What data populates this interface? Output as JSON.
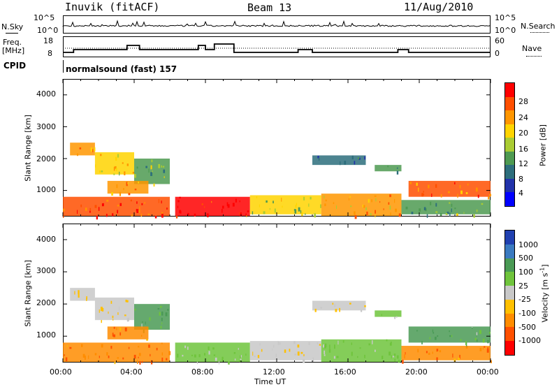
{
  "header": {
    "station": "Inuvik (fitACF)",
    "beam": "Beam 13",
    "date": "11/Aug/2010"
  },
  "top_panel": {
    "left_label": "N.Sky",
    "left_ticks": [
      "10^5",
      "10^0"
    ],
    "right_label": "N.Search",
    "right_ticks": [
      "10^5",
      "10^0"
    ]
  },
  "freq_panel": {
    "left_label_1": "Freq.",
    "left_label_2": "[MHz]",
    "left_ticks": [
      "18",
      "8"
    ],
    "right_label": "Nave",
    "right_ticks": [
      "60",
      "0"
    ]
  },
  "cpid": {
    "label": "CPID",
    "value": "normalsound (fast) 157"
  },
  "axes": {
    "y_label": "Slant Range [km]",
    "y_ticks": [
      "4000",
      "3000",
      "2000",
      "1000"
    ],
    "x_label": "Time UT",
    "x_ticks": [
      "00:00",
      "04:00",
      "08:00",
      "12:00",
      "16:00",
      "20:00",
      "00:00"
    ]
  },
  "power_colorbar": {
    "label": "Power [dB]",
    "ticks": [
      "28",
      "24",
      "20",
      "16",
      "12",
      "8",
      "4"
    ],
    "colors": [
      "#ff0000",
      "#ff4f00",
      "#ff9600",
      "#ffd400",
      "#aacc33",
      "#4e9a51",
      "#2d6e7c",
      "#2233aa",
      "#0000ff"
    ]
  },
  "velocity_colorbar": {
    "label": "Velocity [m s",
    "label_sup": "-1",
    "label_end": "]",
    "ticks": [
      "1000",
      "500",
      "100",
      "25",
      "-25",
      "-100",
      "-500",
      "-1000"
    ],
    "colors": [
      "#2040b0",
      "#3a7ac0",
      "#4a9a55",
      "#6fc43c",
      "#c8c8c8",
      "#ffc000",
      "#ff8c00",
      "#ff5000",
      "#ff0000"
    ]
  },
  "chart_data": {
    "type": "heatmap",
    "title": "Inuvik (fitACF)  Beam 13  11/Aug/2010",
    "xlabel": "Time UT",
    "ylabel": "Slant Range [km]",
    "xlim": [
      0,
      24
    ],
    "ylim": [
      180,
      4500
    ],
    "x_ticks_hours": [
      0,
      4,
      8,
      12,
      16,
      20,
      24
    ],
    "y_ticks_km": [
      1000,
      2000,
      3000,
      4000
    ],
    "power_clim_db": [
      0,
      32
    ],
    "velocity_levels_ms": [
      -1000,
      -500,
      -100,
      -25,
      25,
      100,
      500,
      1000
    ],
    "frequency_steps": [
      {
        "t0": 0,
        "t1": 0.6,
        "mhz": 9
      },
      {
        "t0": 0.6,
        "t1": 1.8,
        "mhz": 11
      },
      {
        "t0": 1.8,
        "t1": 3.6,
        "mhz": 11
      },
      {
        "t0": 3.6,
        "t1": 4.3,
        "mhz": 14
      },
      {
        "t0": 4.3,
        "t1": 7.6,
        "mhz": 11
      },
      {
        "t0": 7.6,
        "t1": 8.0,
        "mhz": 14
      },
      {
        "t0": 8.0,
        "t1": 8.5,
        "mhz": 11
      },
      {
        "t0": 8.5,
        "t1": 9.6,
        "mhz": 15
      },
      {
        "t0": 9.6,
        "t1": 13.2,
        "mhz": 9
      },
      {
        "t0": 13.2,
        "t1": 14.0,
        "mhz": 11
      },
      {
        "t0": 14.0,
        "t1": 18.8,
        "mhz": 9
      },
      {
        "t0": 18.8,
        "t1": 19.4,
        "mhz": 11
      },
      {
        "t0": 19.4,
        "t1": 24,
        "mhz": 9
      }
    ],
    "echo_regions": [
      {
        "t0": 0.0,
        "t1": 6.0,
        "r0": 200,
        "r1": 800,
        "power_db": 28,
        "velocity": -500
      },
      {
        "t0": 6.3,
        "t1": 10.5,
        "r0": 200,
        "r1": 800,
        "power_db": 30,
        "velocity": 25
      },
      {
        "t0": 10.5,
        "t1": 14.5,
        "r0": 250,
        "r1": 850,
        "power_db": 18,
        "velocity": -25
      },
      {
        "t0": 14.5,
        "t1": 19.0,
        "r0": 200,
        "r1": 900,
        "power_db": 22,
        "velocity": 25
      },
      {
        "t0": 19.0,
        "t1": 24.0,
        "r0": 250,
        "r1": 700,
        "power_db": 14,
        "velocity": -500
      },
      {
        "t0": 19.4,
        "t1": 24.0,
        "r0": 800,
        "r1": 1300,
        "power_db": 26,
        "velocity": 100
      },
      {
        "t0": 0.4,
        "t1": 1.8,
        "r0": 2100,
        "r1": 2500,
        "power_db": 22,
        "velocity": -25
      },
      {
        "t0": 1.8,
        "t1": 4.0,
        "r0": 1500,
        "r1": 2200,
        "power_db": 18,
        "velocity": -25
      },
      {
        "t0": 4.0,
        "t1": 6.0,
        "r0": 1200,
        "r1": 2000,
        "power_db": 14,
        "velocity": 100
      },
      {
        "t0": 2.5,
        "t1": 4.8,
        "r0": 900,
        "r1": 1300,
        "power_db": 24,
        "velocity": -500
      },
      {
        "t0": 14.0,
        "t1": 17.0,
        "r0": 1800,
        "r1": 2100,
        "power_db": 10,
        "velocity": -25
      },
      {
        "t0": 17.5,
        "t1": 19.0,
        "r0": 1600,
        "r1": 1800,
        "power_db": 12,
        "velocity": 25
      }
    ]
  }
}
